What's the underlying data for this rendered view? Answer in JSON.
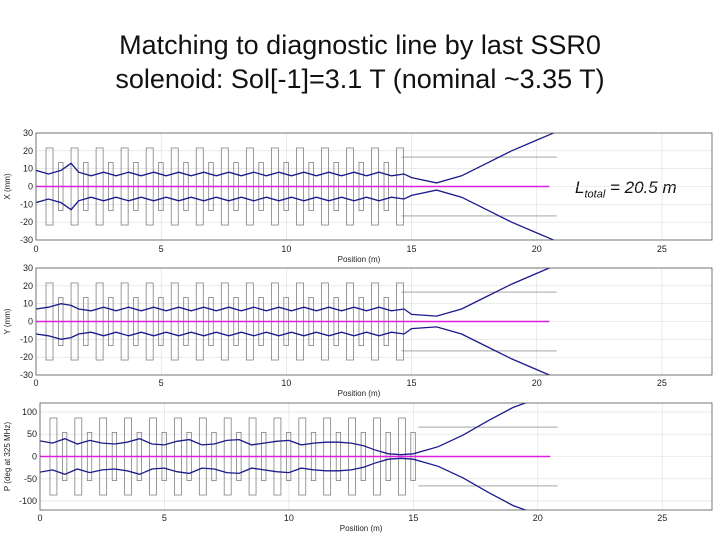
{
  "title": {
    "line1": "Matching to diagnostic line by last SSR0",
    "line2": "solenoid:   Sol[-1]=3.1 T (nominal ~3.35 T)"
  },
  "annotation": {
    "l": "L",
    "sub": "total",
    "rest": " = 20.5 m"
  },
  "colors": {
    "envelope": "#1a1a8c",
    "centroid": "#e01ee0",
    "lattice": "#707070",
    "grid": "#dddddd"
  },
  "chart_data": [
    {
      "type": "line",
      "ylabel": "X (mm)",
      "xlabel": "Position (m)",
      "xlim": [
        0,
        27
      ],
      "ylim": [
        -30,
        30
      ],
      "xticks": [
        0,
        5,
        10,
        15,
        20,
        25
      ],
      "yticks": [
        30,
        20,
        10,
        0,
        -10,
        -20,
        -30
      ],
      "ytick_labels": [
        "30",
        "20",
        "10",
        "0",
        "-10",
        "-20",
        "-30"
      ],
      "centroid_end": 20.5,
      "envelope": {
        "x": [
          0,
          0.5,
          1,
          1.4,
          1.7,
          2.2,
          2.7,
          3.2,
          3.7,
          4.2,
          4.7,
          5.2,
          5.7,
          6.2,
          6.7,
          7.2,
          7.7,
          8.2,
          8.7,
          9.2,
          9.7,
          10.2,
          10.7,
          11.2,
          11.7,
          12.2,
          12.7,
          13.2,
          13.7,
          14.2,
          14.7,
          15.0,
          16.0,
          17.0,
          18.0,
          19.0,
          20.0,
          20.5,
          21.0
        ],
        "y": [
          9,
          7,
          9,
          13,
          8,
          6,
          8,
          6,
          8,
          6,
          8,
          6,
          8,
          6,
          8,
          6,
          8,
          6,
          8,
          6,
          8,
          6,
          8,
          6,
          8,
          6,
          8,
          6,
          8,
          6,
          7,
          5,
          2,
          6,
          13,
          20,
          26,
          29,
          32
        ]
      }
    },
    {
      "type": "line",
      "ylabel": "Y (mm)",
      "xlabel": "Position (m)",
      "xlim": [
        0,
        27
      ],
      "ylim": [
        -30,
        30
      ],
      "xticks": [
        0,
        5,
        10,
        15,
        20,
        25
      ],
      "yticks": [
        30,
        20,
        10,
        0,
        -10,
        -20,
        -30
      ],
      "ytick_labels": [
        "30",
        "20",
        "10",
        "0",
        "-10",
        "-20",
        "-30"
      ],
      "centroid_end": 20.5,
      "envelope": {
        "x": [
          0,
          0.5,
          1,
          1.4,
          1.7,
          2.2,
          2.7,
          3.2,
          3.7,
          4.2,
          4.7,
          5.2,
          5.7,
          6.2,
          6.7,
          7.2,
          7.7,
          8.2,
          8.7,
          9.2,
          9.7,
          10.2,
          10.7,
          11.2,
          11.7,
          12.2,
          12.7,
          13.2,
          13.7,
          14.2,
          14.7,
          15.0,
          16.0,
          17.0,
          18.0,
          19.0,
          20.0,
          20.5,
          21.0
        ],
        "y": [
          7,
          8,
          10,
          9,
          7,
          6,
          8,
          6,
          8,
          6,
          8,
          6,
          8,
          6,
          8,
          6,
          8,
          6,
          8,
          6,
          8,
          6,
          8,
          6,
          8,
          6,
          8,
          6,
          8,
          6,
          7,
          4,
          3,
          7,
          14,
          21,
          27,
          30,
          33
        ]
      }
    },
    {
      "type": "line",
      "ylabel": "P (deg at 325 MHz)",
      "xlabel": "Position (m)",
      "xlim": [
        0,
        27
      ],
      "ylim": [
        -120,
        120
      ],
      "xticks": [
        0,
        5,
        10,
        15,
        20,
        25
      ],
      "yticks": [
        100,
        50,
        0,
        -50,
        -100
      ],
      "ytick_labels": [
        "100",
        "50",
        "0",
        "-50",
        "-100"
      ],
      "centroid_end": 20.5,
      "envelope": {
        "x": [
          0,
          0.5,
          1,
          1.5,
          2,
          2.5,
          3,
          3.5,
          4,
          4.5,
          5,
          5.5,
          6,
          6.5,
          7,
          7.5,
          8,
          8.5,
          9,
          9.5,
          10,
          10.5,
          11,
          11.5,
          12,
          12.5,
          13,
          13.5,
          14,
          14.5,
          15,
          16,
          17,
          18,
          19,
          20,
          20.5
        ],
        "y": [
          35,
          30,
          40,
          28,
          36,
          30,
          28,
          32,
          40,
          28,
          26,
          34,
          38,
          26,
          28,
          36,
          38,
          26,
          30,
          34,
          36,
          26,
          30,
          32,
          32,
          30,
          24,
          14,
          6,
          4,
          6,
          22,
          48,
          80,
          110,
          130,
          140
        ]
      }
    }
  ]
}
